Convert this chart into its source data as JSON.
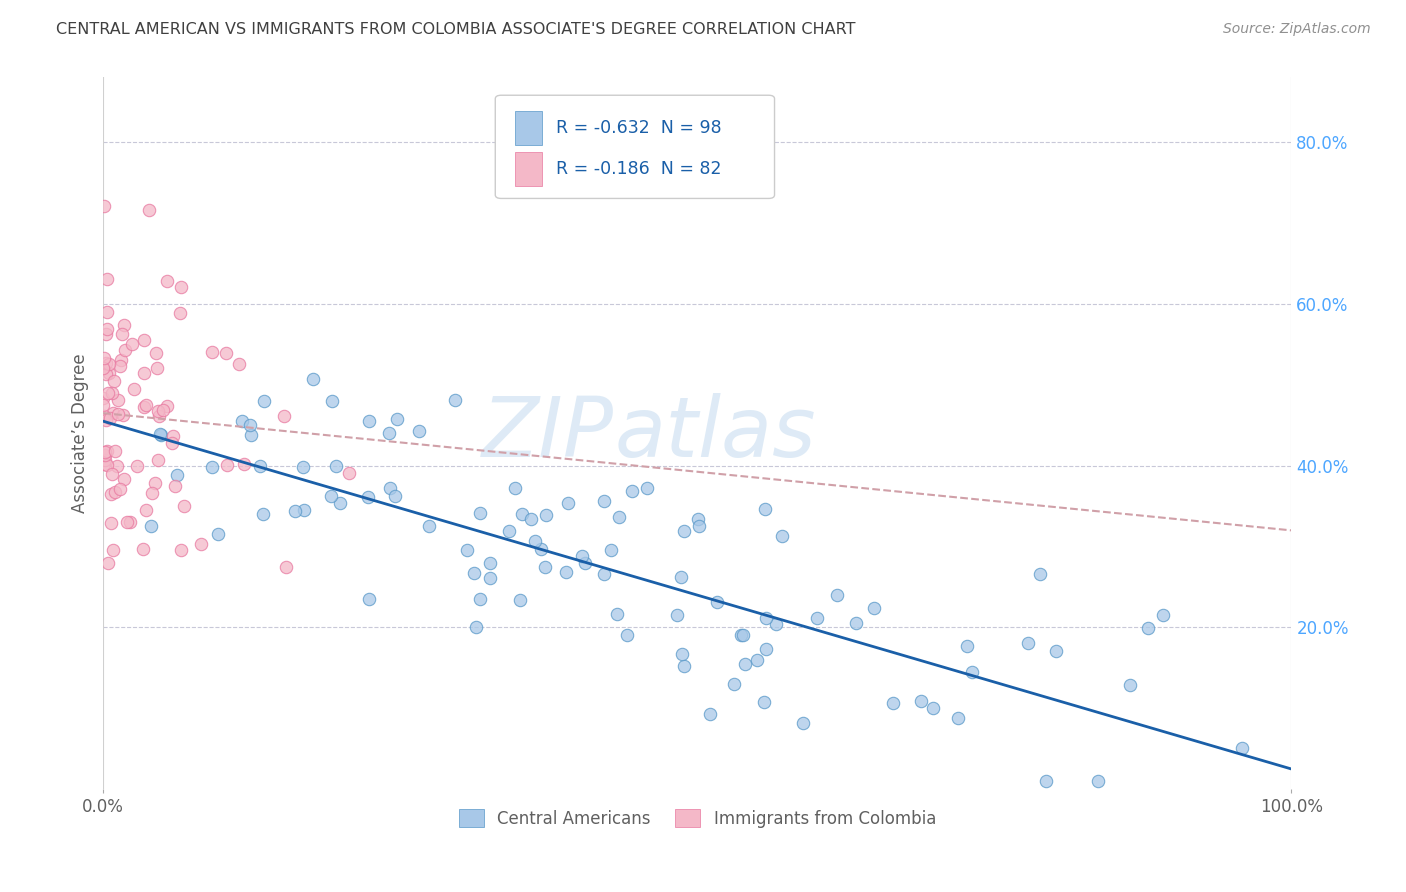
{
  "title": "CENTRAL AMERICAN VS IMMIGRANTS FROM COLOMBIA ASSOCIATE'S DEGREE CORRELATION CHART",
  "source": "Source: ZipAtlas.com",
  "xlabel": "",
  "ylabel": "Associate’s Degree",
  "legend1_label": "Central Americans",
  "legend2_label": "Immigrants from Colombia",
  "R1": -0.632,
  "N1": 98,
  "R2": -0.186,
  "N2": 82,
  "color1": "#a8c8e8",
  "color2": "#f4b8c8",
  "line_color1": "#1a5fa8",
  "line_color2": "#d0a0a8",
  "background": "#ffffff",
  "grid_color": "#c8c8d8",
  "title_color": "#404040",
  "source_color": "#909090",
  "legend_text_color": "#1a5fa8",
  "ytick_color": "#4da6ff",
  "xtick_color": "#606060",
  "watermark_zip": "ZIP",
  "watermark_atlas": "atlas",
  "xlim": [
    0.0,
    1.0
  ],
  "ylim": [
    0.0,
    0.88
  ],
  "xtick_vals": [
    0.0,
    1.0
  ],
  "xtick_labels": [
    "0.0%",
    "100.0%"
  ],
  "ytick_vals": [
    0.2,
    0.4,
    0.6,
    0.8
  ],
  "ytick_labels": [
    "20.0%",
    "40.0%",
    "60.0%",
    "80.0%"
  ],
  "blue_line_x": [
    0.0,
    1.0
  ],
  "blue_line_y": [
    0.455,
    0.025
  ],
  "pink_line_x": [
    0.0,
    1.0
  ],
  "pink_line_y": [
    0.465,
    0.32
  ]
}
